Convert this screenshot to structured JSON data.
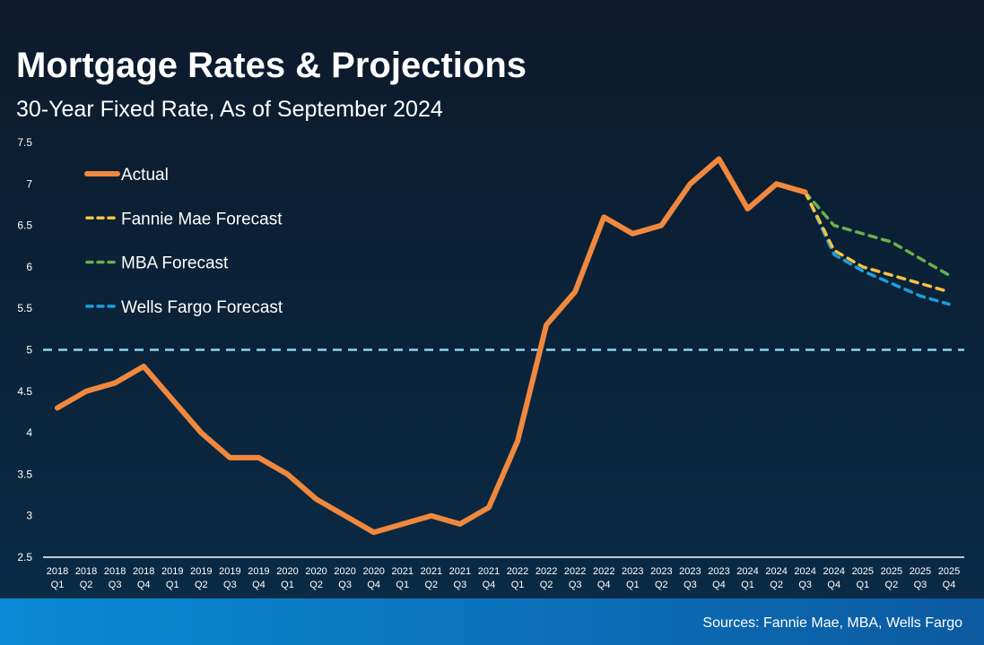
{
  "chart_data": {
    "type": "line",
    "title": "Mortgage Rates & Projections",
    "subtitle": "30-Year Fixed Rate, As of September 2024",
    "footer": "Sources: Fannie Mae, MBA, Wells Fargo",
    "categories": [
      [
        "2018",
        "Q1"
      ],
      [
        "2018",
        "Q2"
      ],
      [
        "2018",
        "Q3"
      ],
      [
        "2018",
        "Q4"
      ],
      [
        "2019",
        "Q1"
      ],
      [
        "2019",
        "Q2"
      ],
      [
        "2019",
        "Q3"
      ],
      [
        "2019",
        "Q4"
      ],
      [
        "2020",
        "Q1"
      ],
      [
        "2020",
        "Q2"
      ],
      [
        "2020",
        "Q3"
      ],
      [
        "2020",
        "Q4"
      ],
      [
        "2021",
        "Q1"
      ],
      [
        "2021",
        "Q2"
      ],
      [
        "2021",
        "Q3"
      ],
      [
        "2021",
        "Q4"
      ],
      [
        "2022",
        "Q1"
      ],
      [
        "2022",
        "Q2"
      ],
      [
        "2022",
        "Q3"
      ],
      [
        "2022",
        "Q4"
      ],
      [
        "2023",
        "Q1"
      ],
      [
        "2023",
        "Q2"
      ],
      [
        "2023",
        "Q3"
      ],
      [
        "2023",
        "Q4"
      ],
      [
        "2024",
        "Q1"
      ],
      [
        "2024",
        "Q2"
      ],
      [
        "2024",
        "Q3"
      ],
      [
        "2024",
        "Q4"
      ],
      [
        "2025",
        "Q1"
      ],
      [
        "2025",
        "Q2"
      ],
      [
        "2025",
        "Q3"
      ],
      [
        "2025",
        "Q4"
      ]
    ],
    "series": [
      {
        "name": "Actual",
        "color": "#f0883e",
        "dashed": false,
        "values": [
          4.3,
          4.5,
          4.6,
          4.8,
          4.4,
          4.0,
          3.7,
          3.7,
          3.5,
          3.2,
          3.0,
          2.8,
          2.9,
          3.0,
          2.9,
          3.1,
          3.9,
          5.3,
          5.7,
          6.6,
          6.4,
          6.5,
          7.0,
          7.3,
          6.7,
          7.0,
          6.9,
          null,
          null,
          null,
          null,
          null
        ]
      },
      {
        "name": "Fannie Mae Forecast",
        "color": "#f5c242",
        "dashed": true,
        "values": [
          null,
          null,
          null,
          null,
          null,
          null,
          null,
          null,
          null,
          null,
          null,
          null,
          null,
          null,
          null,
          null,
          null,
          null,
          null,
          null,
          null,
          null,
          null,
          null,
          null,
          null,
          6.9,
          6.2,
          6.0,
          5.9,
          5.8,
          5.7
        ]
      },
      {
        "name": "MBA Forecast",
        "color": "#6ab04c",
        "dashed": true,
        "values": [
          null,
          null,
          null,
          null,
          null,
          null,
          null,
          null,
          null,
          null,
          null,
          null,
          null,
          null,
          null,
          null,
          null,
          null,
          null,
          null,
          null,
          null,
          null,
          null,
          null,
          null,
          6.9,
          6.5,
          6.4,
          6.3,
          6.1,
          5.9
        ]
      },
      {
        "name": "Wells Fargo Forecast",
        "color": "#1a9ee0",
        "dashed": true,
        "values": [
          null,
          null,
          null,
          null,
          null,
          null,
          null,
          null,
          null,
          null,
          null,
          null,
          null,
          null,
          null,
          null,
          null,
          null,
          null,
          null,
          null,
          null,
          null,
          null,
          null,
          null,
          6.9,
          6.15,
          5.95,
          5.8,
          5.65,
          5.55
        ]
      }
    ],
    "reference_line": {
      "value": 5,
      "color": "#8fd3f4"
    },
    "ylim": [
      2.5,
      7.5
    ],
    "yticks": [
      2.5,
      3,
      3.5,
      4,
      4.5,
      5,
      5.5,
      6,
      6.5,
      7,
      7.5
    ],
    "legend": "top-left"
  }
}
